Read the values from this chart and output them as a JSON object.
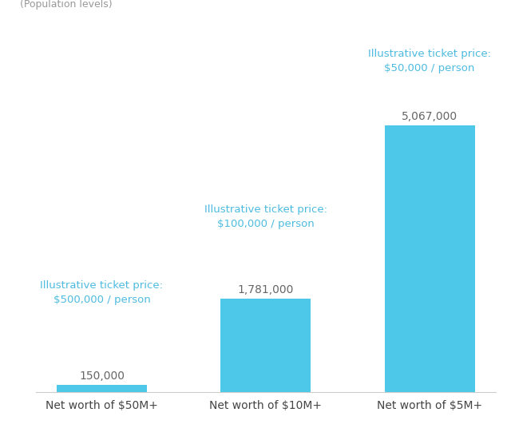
{
  "categories": [
    "Net worth of $50M+",
    "Net worth of $10M+",
    "Net worth of $5M+"
  ],
  "values": [
    150000,
    1781000,
    5067000
  ],
  "bar_color": "#4DC8E8",
  "value_labels": [
    "150,000",
    "1,781,000",
    "5,067,000"
  ],
  "ticket_labels": [
    "Illustrative ticket price:\n$500,000 / person",
    "Illustrative ticket price:\n$100,000 / person",
    "Illustrative ticket price:\n$50,000 / person"
  ],
  "ticket_label_color": "#4DBBE0",
  "value_label_color": "#666666",
  "top_left_note": "(Population levels)",
  "background_color": "#ffffff",
  "ylim": [
    0,
    7200000
  ],
  "bar_width": 0.55,
  "note_fontsize": 9,
  "tick_label_fontsize": 10,
  "value_label_fontsize": 10,
  "ticket_label_fontsize": 9.5
}
